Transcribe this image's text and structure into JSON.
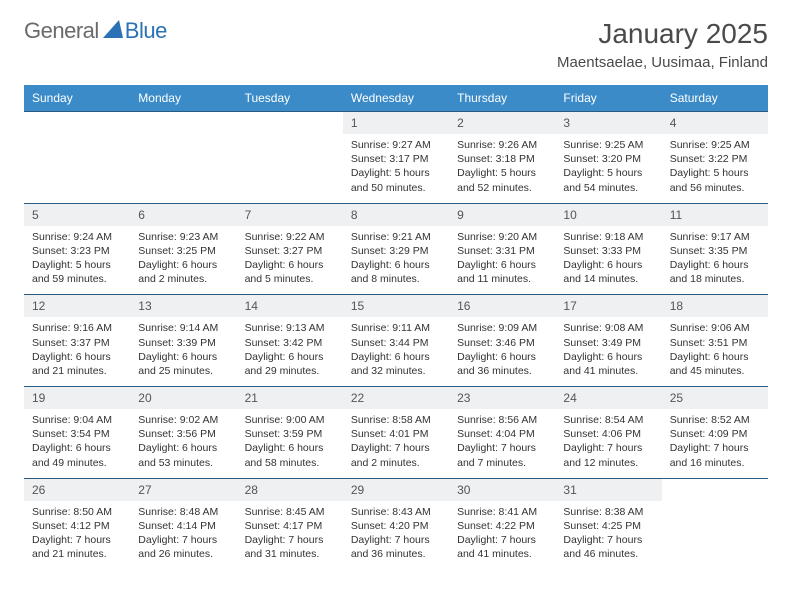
{
  "logo": {
    "part1": "General",
    "part2": "Blue"
  },
  "title": "January 2025",
  "location": "Maentsaelae, Uusimaa, Finland",
  "colors": {
    "header_bg": "#3b8bc8",
    "header_text": "#ffffff",
    "daynum_bg": "#eef0f2",
    "row_border": "#2a5b85",
    "logo_gray": "#6a6a6a",
    "logo_blue": "#2a72b5"
  },
  "day_headers": [
    "Sunday",
    "Monday",
    "Tuesday",
    "Wednesday",
    "Thursday",
    "Friday",
    "Saturday"
  ],
  "weeks": [
    [
      null,
      null,
      null,
      {
        "n": "1",
        "sunrise": "9:27 AM",
        "sunset": "3:17 PM",
        "day_h": "5",
        "day_m": "50"
      },
      {
        "n": "2",
        "sunrise": "9:26 AM",
        "sunset": "3:18 PM",
        "day_h": "5",
        "day_m": "52"
      },
      {
        "n": "3",
        "sunrise": "9:25 AM",
        "sunset": "3:20 PM",
        "day_h": "5",
        "day_m": "54"
      },
      {
        "n": "4",
        "sunrise": "9:25 AM",
        "sunset": "3:22 PM",
        "day_h": "5",
        "day_m": "56"
      }
    ],
    [
      {
        "n": "5",
        "sunrise": "9:24 AM",
        "sunset": "3:23 PM",
        "day_h": "5",
        "day_m": "59"
      },
      {
        "n": "6",
        "sunrise": "9:23 AM",
        "sunset": "3:25 PM",
        "day_h": "6",
        "day_m": "2"
      },
      {
        "n": "7",
        "sunrise": "9:22 AM",
        "sunset": "3:27 PM",
        "day_h": "6",
        "day_m": "5"
      },
      {
        "n": "8",
        "sunrise": "9:21 AM",
        "sunset": "3:29 PM",
        "day_h": "6",
        "day_m": "8"
      },
      {
        "n": "9",
        "sunrise": "9:20 AM",
        "sunset": "3:31 PM",
        "day_h": "6",
        "day_m": "11"
      },
      {
        "n": "10",
        "sunrise": "9:18 AM",
        "sunset": "3:33 PM",
        "day_h": "6",
        "day_m": "14"
      },
      {
        "n": "11",
        "sunrise": "9:17 AM",
        "sunset": "3:35 PM",
        "day_h": "6",
        "day_m": "18"
      }
    ],
    [
      {
        "n": "12",
        "sunrise": "9:16 AM",
        "sunset": "3:37 PM",
        "day_h": "6",
        "day_m": "21"
      },
      {
        "n": "13",
        "sunrise": "9:14 AM",
        "sunset": "3:39 PM",
        "day_h": "6",
        "day_m": "25"
      },
      {
        "n": "14",
        "sunrise": "9:13 AM",
        "sunset": "3:42 PM",
        "day_h": "6",
        "day_m": "29"
      },
      {
        "n": "15",
        "sunrise": "9:11 AM",
        "sunset": "3:44 PM",
        "day_h": "6",
        "day_m": "32"
      },
      {
        "n": "16",
        "sunrise": "9:09 AM",
        "sunset": "3:46 PM",
        "day_h": "6",
        "day_m": "36"
      },
      {
        "n": "17",
        "sunrise": "9:08 AM",
        "sunset": "3:49 PM",
        "day_h": "6",
        "day_m": "41"
      },
      {
        "n": "18",
        "sunrise": "9:06 AM",
        "sunset": "3:51 PM",
        "day_h": "6",
        "day_m": "45"
      }
    ],
    [
      {
        "n": "19",
        "sunrise": "9:04 AM",
        "sunset": "3:54 PM",
        "day_h": "6",
        "day_m": "49"
      },
      {
        "n": "20",
        "sunrise": "9:02 AM",
        "sunset": "3:56 PM",
        "day_h": "6",
        "day_m": "53"
      },
      {
        "n": "21",
        "sunrise": "9:00 AM",
        "sunset": "3:59 PM",
        "day_h": "6",
        "day_m": "58"
      },
      {
        "n": "22",
        "sunrise": "8:58 AM",
        "sunset": "4:01 PM",
        "day_h": "7",
        "day_m": "2"
      },
      {
        "n": "23",
        "sunrise": "8:56 AM",
        "sunset": "4:04 PM",
        "day_h": "7",
        "day_m": "7"
      },
      {
        "n": "24",
        "sunrise": "8:54 AM",
        "sunset": "4:06 PM",
        "day_h": "7",
        "day_m": "12"
      },
      {
        "n": "25",
        "sunrise": "8:52 AM",
        "sunset": "4:09 PM",
        "day_h": "7",
        "day_m": "16"
      }
    ],
    [
      {
        "n": "26",
        "sunrise": "8:50 AM",
        "sunset": "4:12 PM",
        "day_h": "7",
        "day_m": "21"
      },
      {
        "n": "27",
        "sunrise": "8:48 AM",
        "sunset": "4:14 PM",
        "day_h": "7",
        "day_m": "26"
      },
      {
        "n": "28",
        "sunrise": "8:45 AM",
        "sunset": "4:17 PM",
        "day_h": "7",
        "day_m": "31"
      },
      {
        "n": "29",
        "sunrise": "8:43 AM",
        "sunset": "4:20 PM",
        "day_h": "7",
        "day_m": "36"
      },
      {
        "n": "30",
        "sunrise": "8:41 AM",
        "sunset": "4:22 PM",
        "day_h": "7",
        "day_m": "41"
      },
      {
        "n": "31",
        "sunrise": "8:38 AM",
        "sunset": "4:25 PM",
        "day_h": "7",
        "day_m": "46"
      },
      null
    ]
  ],
  "labels": {
    "sunrise": "Sunrise: ",
    "sunset": "Sunset: ",
    "daylight_prefix": "Daylight: ",
    "hours_word": " hours",
    "and_word": "and ",
    "minutes_word": " minutes."
  }
}
